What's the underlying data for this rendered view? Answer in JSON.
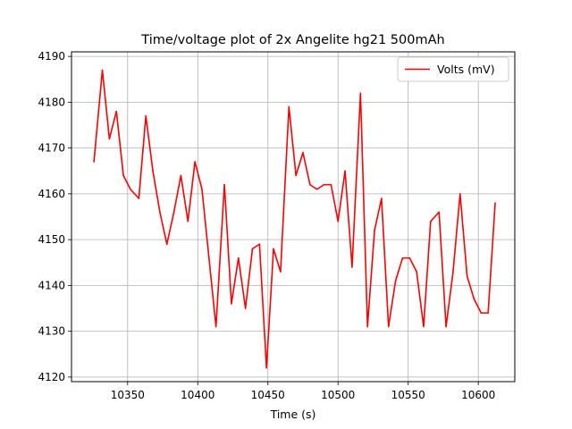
{
  "chart_data": {
    "type": "line",
    "title": "Time/voltage plot of 2x Angelite hg21 500mAh",
    "xlabel": "Time (s)",
    "ylabel": "",
    "xlim": [
      10310,
      10626
    ],
    "ylim": [
      4119,
      4191
    ],
    "xticks": [
      10350,
      10400,
      10450,
      10500,
      10550,
      10600
    ],
    "yticks": [
      4120,
      4130,
      4140,
      4150,
      4160,
      4170,
      4180,
      4190
    ],
    "grid": true,
    "legend_position": "top-right",
    "series": [
      {
        "name": "Volts (mV)",
        "color": "#ff0000",
        "x": [
          10326,
          10332,
          10337,
          10342,
          10347,
          10352,
          10358,
          10363,
          10368,
          10373,
          10378,
          10383,
          10388,
          10393,
          10398,
          10403,
          10408,
          10413,
          10419,
          10424,
          10429,
          10434,
          10439,
          10444,
          10449,
          10454,
          10459,
          10465,
          10470,
          10475,
          10480,
          10485,
          10490,
          10495,
          10500,
          10505,
          10510,
          10516,
          10521,
          10526,
          10531,
          10536,
          10541,
          10546,
          10551,
          10556,
          10561,
          10566,
          10572,
          10577,
          10582,
          10587,
          10592,
          10597,
          10602,
          10607,
          10612
        ],
        "y": [
          4167,
          4187,
          4172,
          4178,
          4164,
          4161,
          4159,
          4177,
          4165,
          4156,
          4149,
          4156,
          4164,
          4154,
          4167,
          4161,
          4146,
          4131,
          4162,
          4136,
          4146,
          4135,
          4148,
          4149,
          4122,
          4148,
          4143,
          4179,
          4164,
          4169,
          4162,
          4161,
          4162,
          4162,
          4154,
          4165,
          4144,
          4182,
          4131,
          4152,
          4159,
          4131,
          4141,
          4146,
          4146,
          4143,
          4131,
          4154,
          4156,
          4131,
          4143,
          4160,
          4142,
          4137,
          4134,
          4134,
          4158
        ]
      }
    ]
  }
}
